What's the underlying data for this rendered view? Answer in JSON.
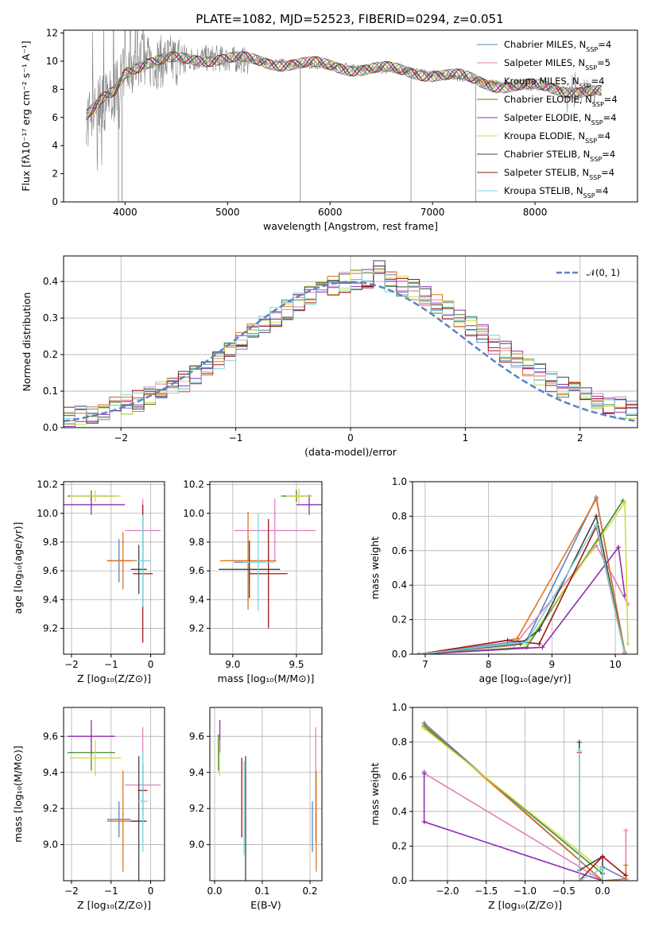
{
  "figure_title": "PLATE=1082, MJD=52523, FIBERID=0294, z=0.051",
  "colors": {
    "Chabrier MILES": "#5b83c6",
    "Salpeter MILES": "#e37fb9",
    "Kroupa MILES": "#e0741f",
    "Chabrier ELODIE": "#3f8a2f",
    "Salpeter ELODIE": "#8e2db0",
    "Kroupa ELODIE": "#d6d84a",
    "Chabrier STELIB": "#444444",
    "Salpeter STELIB": "#a31515",
    "Kroupa STELIB": "#7fd3dc",
    "data": "#808080",
    "gaussian": "#5b83c6"
  },
  "chart_data": [
    {
      "id": "spectrum",
      "type": "line",
      "title": "PLATE=1082, MJD=52523, FIBERID=0294, z=0.051",
      "xlabel": "wavelength [Angstrom, rest frame]",
      "ylabel": "Flux [fλ10⁻¹⁷ erg cm⁻² s⁻¹ A⁻¹]",
      "xlim": [
        3400,
        9000
      ],
      "ylim": [
        0,
        12.2
      ],
      "xticks": [
        "4000",
        "5000",
        "6000",
        "7000",
        "8000"
      ],
      "yticks": [
        "0",
        "2",
        "4",
        "6",
        "8",
        "10",
        "12"
      ],
      "legend_position": "top-right",
      "legend": [
        {
          "name": "Chabrier MILES, N",
          "sub": "SSP",
          "tail": "=4"
        },
        {
          "name": "Salpeter MILES, N",
          "sub": "SSP",
          "tail": "=5"
        },
        {
          "name": "Kroupa MILES, N",
          "sub": "SSP",
          "tail": "=4"
        },
        {
          "name": "Chabrier ELODIE, N",
          "sub": "SSP",
          "tail": "=4"
        },
        {
          "name": "Salpeter ELODIE, N",
          "sub": "SSP",
          "tail": "=4"
        },
        {
          "name": "Kroupa ELODIE, N",
          "sub": "SSP",
          "tail": "=4"
        },
        {
          "name": "Chabrier STELIB, N",
          "sub": "SSP",
          "tail": "=4"
        },
        {
          "name": "Salpeter STELIB, N",
          "sub": "SSP",
          "tail": "=4"
        },
        {
          "name": "Kroupa STELIB, N",
          "sub": "SSP",
          "tail": "=4"
        }
      ],
      "continuum": {
        "x": [
          3620,
          3700,
          3800,
          3900,
          4000,
          4100,
          4200,
          4300,
          4400,
          4500,
          4700,
          4900,
          5100,
          5300,
          5500,
          5700,
          5900,
          6100,
          6300,
          6500,
          6700,
          6900,
          7100,
          7300,
          7500,
          7700,
          7900,
          8100,
          8300,
          8500,
          8650
        ],
        "y": [
          6.0,
          6.5,
          7.3,
          7.9,
          9.3,
          9.7,
          9.9,
          9.9,
          10.0,
          10.1,
          10.2,
          10.2,
          10.1,
          10.0,
          9.9,
          9.8,
          9.7,
          9.6,
          9.5,
          9.4,
          9.3,
          9.2,
          9.0,
          8.8,
          8.5,
          8.3,
          8.2,
          8.1,
          8.0,
          7.9,
          7.7
        ]
      },
      "noise": 0.6,
      "dips": [
        [
          3935,
          0.0
        ],
        [
          3970,
          0.0
        ],
        [
          5710,
          0.0
        ],
        [
          6790,
          0.0
        ],
        [
          7420,
          0.0
        ]
      ]
    },
    {
      "id": "residuals",
      "type": "line",
      "xlabel": "(data-model)/error",
      "ylabel": "Normed distribution",
      "xlim": [
        -2.5,
        2.5
      ],
      "ylim": [
        0,
        0.47
      ],
      "xticks": [
        "−2",
        "−1",
        "0",
        "1",
        "2"
      ],
      "yticks": [
        "0.0",
        "0.1",
        "0.2",
        "0.3",
        "0.4"
      ],
      "legend": "𝒩(0, 1)",
      "legend_position": "top-right",
      "bin_width": 0.1,
      "gaussian": {
        "mu": 0,
        "sigma": 1
      }
    },
    {
      "id": "age-vs-Z",
      "type": "scatter",
      "xlabel": "Z [log₁₀(Z/Z⊙)]",
      "ylabel": "age  [log₁₀(age/yr)]",
      "xlim": [
        -2.2,
        0.35
      ],
      "ylim": [
        9.02,
        10.22
      ],
      "xticks": [
        "−2",
        "−1",
        "0"
      ],
      "yticks": [
        "9.2",
        "9.4",
        "9.6",
        "9.8",
        "10.0",
        "10.2"
      ],
      "points": [
        {
          "s": "Chabrier MILES",
          "x": -0.8,
          "y": 9.67,
          "xe": 0.3,
          "ye": 0.15
        },
        {
          "s": "Salpeter MILES",
          "x": -0.2,
          "y": 9.88,
          "xe": 0.45,
          "ye": 0.22
        },
        {
          "s": "Kroupa MILES",
          "x": -0.7,
          "y": 9.67,
          "xe": 0.4,
          "ye": 0.2
        },
        {
          "s": "Chabrier ELODIE",
          "x": -1.5,
          "y": 10.12,
          "xe": 0.6,
          "ye": 0.04
        },
        {
          "s": "Salpeter ELODIE",
          "x": -1.5,
          "y": 10.06,
          "xe": 0.85,
          "ye": 0.07
        },
        {
          "s": "Kroupa ELODIE",
          "x": -1.4,
          "y": 10.12,
          "xe": 0.65,
          "ye": 0.04
        },
        {
          "s": "Chabrier STELIB",
          "x": -0.3,
          "y": 9.61,
          "xe": 0.2,
          "ye": 0.17
        },
        {
          "s": "Salpeter STELIB",
          "x": -0.2,
          "y": 9.58,
          "xe": 0.25,
          "ye": 0.48
        },
        {
          "s": "Kroupa STELIB",
          "x": -0.2,
          "y": 9.67,
          "xe": 0.2,
          "ye": 0.32
        }
      ]
    },
    {
      "id": "age-vs-mass",
      "type": "scatter",
      "xlabel": "mass [log₁₀(M/M⊙)]",
      "ylabel": "",
      "xlim": [
        8.82,
        9.7
      ],
      "ylim": [
        9.02,
        10.22
      ],
      "xticks": [
        "9.0",
        "9.5"
      ],
      "yticks": [
        "9.2",
        "9.4",
        "9.6",
        "9.8",
        "10.0",
        "10.2"
      ],
      "points": [
        {
          "s": "Chabrier MILES",
          "x": 9.13,
          "y": 9.66,
          "xe": 0.12,
          "ye": 0.15
        },
        {
          "s": "Salpeter MILES",
          "x": 9.33,
          "y": 9.88,
          "xe": 0.32,
          "ye": 0.22
        },
        {
          "s": "Kroupa MILES",
          "x": 9.12,
          "y": 9.67,
          "xe": 0.22,
          "ye": 0.34
        },
        {
          "s": "Chabrier ELODIE",
          "x": 9.5,
          "y": 10.12,
          "xe": 0.12,
          "ye": 0.04
        },
        {
          "s": "Salpeter ELODIE",
          "x": 9.6,
          "y": 10.06,
          "xe": 0.1,
          "ye": 0.07
        },
        {
          "s": "Kroupa ELODIE",
          "x": 9.52,
          "y": 10.12,
          "xe": 0.1,
          "ye": 0.05
        },
        {
          "s": "Chabrier STELIB",
          "x": 9.13,
          "y": 9.61,
          "xe": 0.24,
          "ye": 0.2
        },
        {
          "s": "Salpeter STELIB",
          "x": 9.28,
          "y": 9.58,
          "xe": 0.15,
          "ye": 0.38
        },
        {
          "s": "Kroupa STELIB",
          "x": 9.2,
          "y": 9.66,
          "xe": 0.12,
          "ye": 0.34
        }
      ]
    },
    {
      "id": "weight-vs-age",
      "type": "line",
      "xlabel": "age  [log₁₀(age/yr)]",
      "ylabel": "mass weight",
      "xlim": [
        6.8,
        10.35
      ],
      "ylim": [
        0,
        1.0
      ],
      "xticks": [
        "7",
        "8",
        "9",
        "10"
      ],
      "yticks": [
        "0.0",
        "0.2",
        "0.4",
        "0.6",
        "0.8",
        "1.0"
      ],
      "series": [
        {
          "s": "Chabrier MILES",
          "x": [
            6.9,
            8.6,
            9.7,
            10.15
          ],
          "y": [
            0.0,
            0.08,
            0.91,
            0.01
          ]
        },
        {
          "s": "Salpeter MILES",
          "x": [
            6.9,
            8.4,
            9.7,
            10.2
          ],
          "y": [
            0.0,
            0.05,
            0.63,
            0.29
          ]
        },
        {
          "s": "Kroupa MILES",
          "x": [
            6.9,
            8.45,
            9.7,
            10.15
          ],
          "y": [
            0.0,
            0.09,
            0.9,
            0.01
          ]
        },
        {
          "s": "Chabrier ELODIE",
          "x": [
            6.9,
            8.6,
            10.12
          ],
          "y": [
            0.0,
            0.04,
            0.89
          ]
        },
        {
          "s": "Salpeter ELODIE",
          "x": [
            6.9,
            8.85,
            10.05,
            10.15
          ],
          "y": [
            0.0,
            0.04,
            0.62,
            0.34
          ]
        },
        {
          "s": "Kroupa ELODIE",
          "x": [
            6.9,
            8.6,
            10.15,
            10.2
          ],
          "y": [
            0.0,
            0.06,
            0.88,
            0.06
          ]
        },
        {
          "s": "Chabrier STELIB",
          "x": [
            6.9,
            8.5,
            8.8,
            9.7,
            10.15
          ],
          "y": [
            0.0,
            0.06,
            0.14,
            0.8,
            0.0
          ]
        },
        {
          "s": "Salpeter STELIB",
          "x": [
            6.9,
            8.3,
            8.8,
            9.7,
            10.15
          ],
          "y": [
            0.0,
            0.08,
            0.06,
            0.74,
            0.0
          ]
        },
        {
          "s": "Kroupa STELIB",
          "x": [
            6.9,
            8.6,
            9.7,
            10.15
          ],
          "y": [
            0.0,
            0.07,
            0.75,
            0.0
          ]
        }
      ]
    },
    {
      "id": "mass-vs-Z",
      "type": "scatter",
      "xlabel": "Z [log₁₀(Z/Z⊙)]",
      "ylabel": "mass [log₁₀(M/M⊙)]",
      "xlim": [
        -2.2,
        0.35
      ],
      "ylim": [
        8.8,
        9.76
      ],
      "xticks": [
        "−2",
        "−1",
        "0"
      ],
      "yticks": [
        "9.0",
        "9.2",
        "9.4",
        "9.6"
      ],
      "points": [
        {
          "s": "Chabrier MILES",
          "x": -0.8,
          "y": 9.14,
          "xe": 0.3,
          "ye": 0.1
        },
        {
          "s": "Salpeter MILES",
          "x": -0.2,
          "y": 9.33,
          "xe": 0.45,
          "ye": 0.32
        },
        {
          "s": "Kroupa MILES",
          "x": -0.7,
          "y": 9.13,
          "xe": 0.4,
          "ye": 0.28
        },
        {
          "s": "Chabrier ELODIE",
          "x": -1.5,
          "y": 9.51,
          "xe": 0.6,
          "ye": 0.1
        },
        {
          "s": "Salpeter ELODIE",
          "x": -1.5,
          "y": 9.6,
          "xe": 0.6,
          "ye": 0.09
        },
        {
          "s": "Kroupa ELODIE",
          "x": -1.4,
          "y": 9.48,
          "xe": 0.65,
          "ye": 0.1
        },
        {
          "s": "Chabrier STELIB",
          "x": -0.3,
          "y": 9.13,
          "xe": 0.2,
          "ye": 0.36
        },
        {
          "s": "Salpeter STELIB",
          "x": -0.2,
          "y": 9.3,
          "xe": 0.12,
          "ye": 0.14
        },
        {
          "s": "Kroupa STELIB",
          "x": -0.2,
          "y": 9.24,
          "xe": 0.12,
          "ye": 0.28
        }
      ]
    },
    {
      "id": "EBV",
      "type": "scatter",
      "xlabel": "E(B-V)",
      "ylabel": "",
      "xlim": [
        -0.01,
        0.225
      ],
      "ylim": [
        8.8,
        9.76
      ],
      "xticks": [
        "0.0",
        "0.1",
        "0.2"
      ],
      "yticks": [
        "9.0",
        "9.2",
        "9.4",
        "9.6"
      ],
      "points": [
        {
          "s": "Chabrier MILES",
          "x": 0.205,
          "y": 9.1,
          "ye": 0.14
        },
        {
          "s": "Salpeter MILES",
          "x": 0.212,
          "y": 9.33,
          "ye": 0.32
        },
        {
          "s": "Kroupa MILES",
          "x": 0.213,
          "y": 9.13,
          "ye": 0.28
        },
        {
          "s": "Chabrier ELODIE",
          "x": 0.008,
          "y": 9.51,
          "ye": 0.1
        },
        {
          "s": "Salpeter ELODIE",
          "x": 0.011,
          "y": 9.6,
          "ye": 0.09
        },
        {
          "s": "Kroupa ELODIE",
          "x": 0.01,
          "y": 9.48,
          "ye": 0.1
        },
        {
          "s": "Chabrier STELIB",
          "x": 0.065,
          "y": 9.13,
          "ye": 0.36
        },
        {
          "s": "Salpeter STELIB",
          "x": 0.057,
          "y": 9.26,
          "ye": 0.22
        },
        {
          "s": "Kroupa STELIB",
          "x": 0.062,
          "y": 9.2,
          "ye": 0.26
        }
      ]
    },
    {
      "id": "weight-vs-Z",
      "type": "line",
      "xlabel": "Z [log₁₀(Z/Z⊙)]",
      "ylabel": "mass weight",
      "xlim": [
        -2.45,
        0.45
      ],
      "ylim": [
        0,
        1.0
      ],
      "xticks": [
        "−2.0",
        "−1.5",
        "−1.0",
        "−0.5",
        "0.0"
      ],
      "yticks": [
        "0.0",
        "0.2",
        "0.4",
        "0.6",
        "0.8",
        "1.0"
      ],
      "series": [
        {
          "s": "Chabrier MILES",
          "x": [
            -2.3,
            0.0,
            0.0,
            0.3
          ],
          "y": [
            0.91,
            0.0,
            0.08,
            0.01
          ]
        },
        {
          "s": "Salpeter MILES",
          "x": [
            -2.3,
            -2.3,
            0.0,
            0.3,
            0.3
          ],
          "y": [
            0.63,
            0.62,
            0.0,
            0.0,
            0.29
          ]
        },
        {
          "s": "Kroupa MILES",
          "x": [
            -2.3,
            0.0,
            0.3,
            0.3
          ],
          "y": [
            0.9,
            0.0,
            0.01,
            0.09
          ]
        },
        {
          "s": "Chabrier ELODIE",
          "x": [
            -2.3,
            0.0,
            0.0
          ],
          "y": [
            0.89,
            0.04,
            0.0
          ]
        },
        {
          "s": "Salpeter ELODIE",
          "x": [
            -2.3,
            -2.3,
            0.0,
            0.0
          ],
          "y": [
            0.62,
            0.34,
            0.0,
            0.04
          ]
        },
        {
          "s": "Kroupa ELODIE",
          "x": [
            -2.3,
            0.0,
            0.0
          ],
          "y": [
            0.88,
            0.06,
            0.0
          ]
        },
        {
          "s": "Chabrier STELIB",
          "x": [
            -0.3,
            -0.3,
            0.0,
            0.0
          ],
          "y": [
            0.8,
            0.06,
            0.14,
            0.0
          ]
        },
        {
          "s": "Salpeter STELIB",
          "x": [
            -0.3,
            -0.3,
            0.0,
            0.3
          ],
          "y": [
            0.74,
            0.0,
            0.14,
            0.03
          ]
        },
        {
          "s": "Kroupa STELIB",
          "x": [
            -0.3,
            -0.3,
            0.0,
            0.0
          ],
          "y": [
            0.75,
            0.0,
            0.07,
            0.0
          ]
        }
      ]
    }
  ]
}
